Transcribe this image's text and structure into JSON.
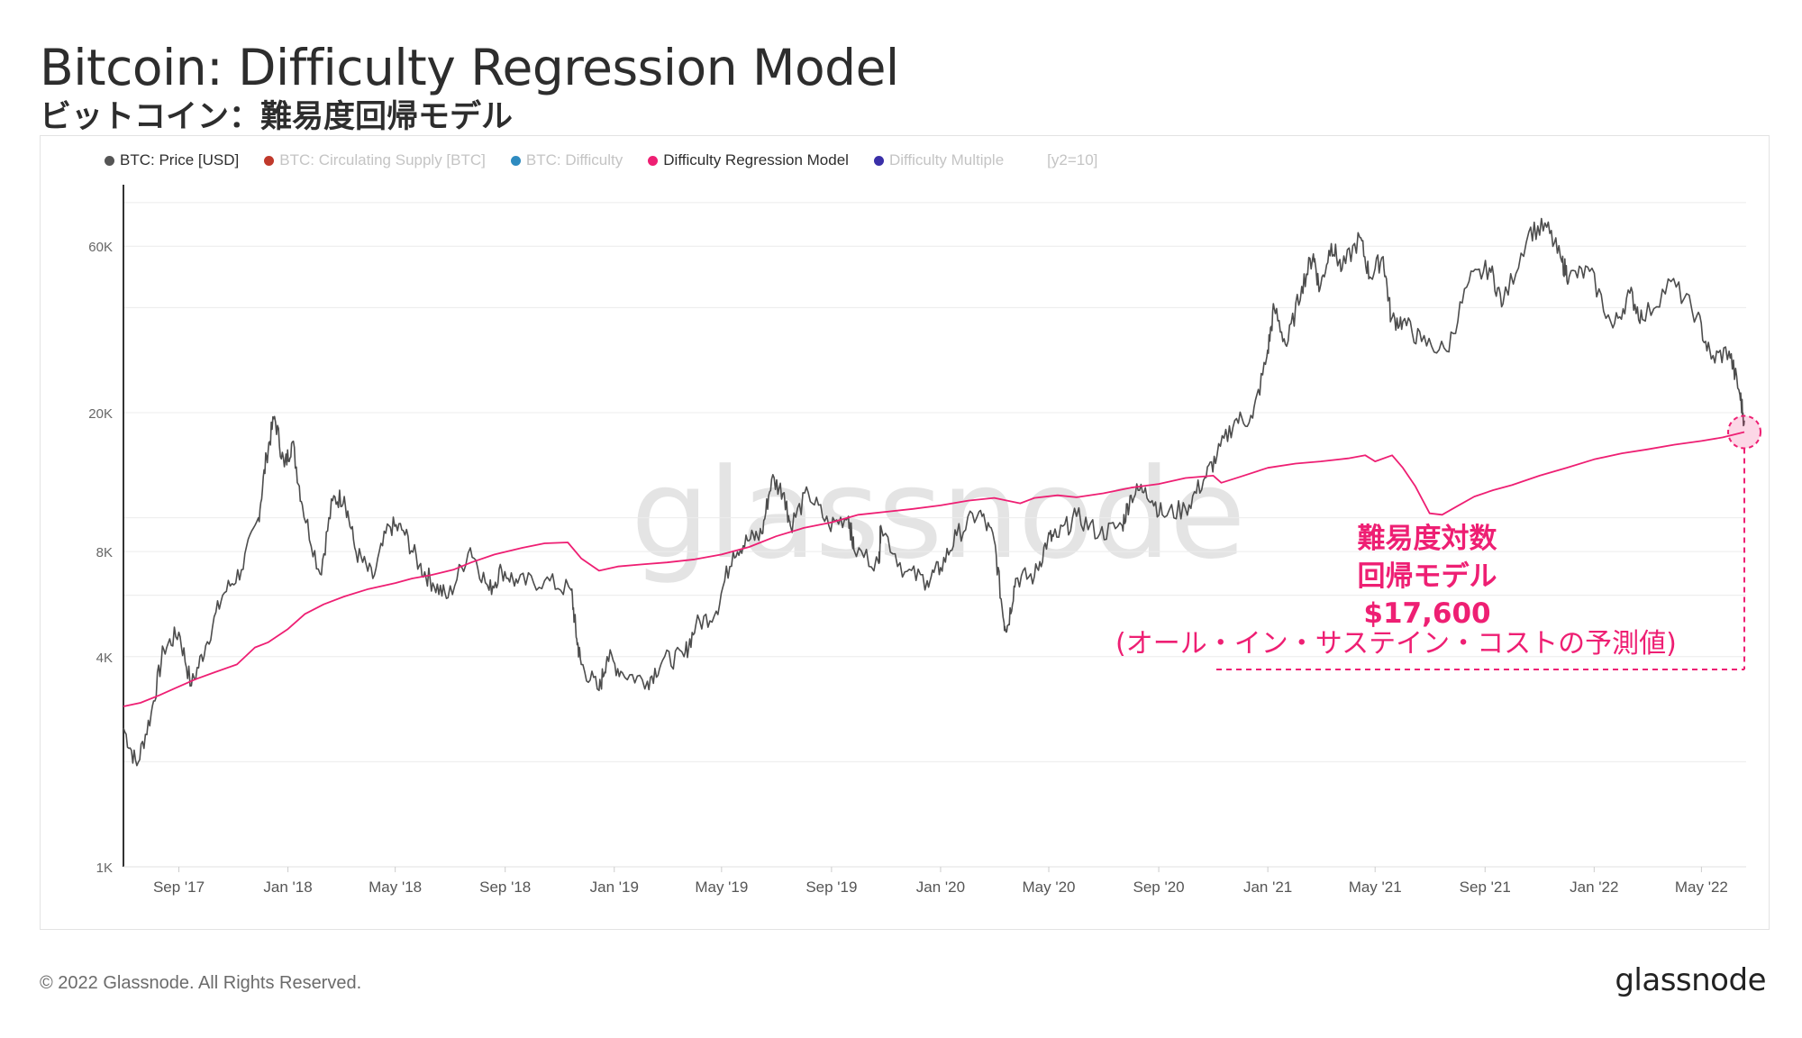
{
  "title": "Bitcoin: Difficulty Regression Model",
  "subtitle": "ビットコイン：難易度回帰モデル",
  "legend": [
    {
      "label": "BTC: Price [USD]",
      "color": "#555555",
      "active": true
    },
    {
      "label": "BTC: Circulating Supply [BTC]",
      "color": "#c0392b",
      "active": false
    },
    {
      "label": "BTC: Difficulty",
      "color": "#2e8bc0",
      "active": false
    },
    {
      "label": "Difficulty Regression Model",
      "color": "#ee1f73",
      "active": true
    },
    {
      "label": "Difficulty Multiple",
      "color": "#3a2fa8",
      "active": false
    }
  ],
  "legend_extra": "[y2=10]",
  "watermark": "glassnode",
  "annotation": {
    "line1": "難易度対数",
    "line2": "回帰モデル",
    "value": "$17,600",
    "note": "(オール・イン・サステイン・コストの予測値)"
  },
  "footer": {
    "copyright": "© 2022 Glassnode. All Rights Reserved.",
    "logo": "glassnode"
  },
  "chart_data": {
    "type": "line",
    "y_scale": "log",
    "ylim": [
      1000,
      90000
    ],
    "y_ticks": [
      {
        "value": 1000,
        "label": "1K"
      },
      {
        "value": 4000,
        "label": "4K"
      },
      {
        "value": 8000,
        "label": "8K"
      },
      {
        "value": 20000,
        "label": "20K"
      },
      {
        "value": 60000,
        "label": "60K"
      }
    ],
    "y_gridlines": [
      2000,
      4000,
      6000,
      8000,
      10000,
      20000,
      40000,
      60000,
      80000
    ],
    "x_range": [
      "2017-07-01",
      "2022-06-20"
    ],
    "x_ticks": [
      {
        "date": "2017-09-01",
        "label": "Sep '17"
      },
      {
        "date": "2018-01-01",
        "label": "Jan '18"
      },
      {
        "date": "2018-05-01",
        "label": "May '18"
      },
      {
        "date": "2018-09-01",
        "label": "Sep '18"
      },
      {
        "date": "2019-01-01",
        "label": "Jan '19"
      },
      {
        "date": "2019-05-01",
        "label": "May '19"
      },
      {
        "date": "2019-09-01",
        "label": "Sep '19"
      },
      {
        "date": "2020-01-01",
        "label": "Jan '20"
      },
      {
        "date": "2020-05-01",
        "label": "May '20"
      },
      {
        "date": "2020-09-01",
        "label": "Sep '20"
      },
      {
        "date": "2021-01-01",
        "label": "Jan '21"
      },
      {
        "date": "2021-05-01",
        "label": "May '21"
      },
      {
        "date": "2021-09-01",
        "label": "Sep '21"
      },
      {
        "date": "2022-01-01",
        "label": "Jan '22"
      },
      {
        "date": "2022-05-01",
        "label": "May '22"
      }
    ],
    "series": [
      {
        "name": "BTC: Price [USD]",
        "color": "#4d4d4d",
        "points": [
          [
            "2017-07-01",
            2500
          ],
          [
            "2017-07-16",
            1950
          ],
          [
            "2017-08-01",
            2750
          ],
          [
            "2017-08-15",
            4200
          ],
          [
            "2017-09-01",
            4700
          ],
          [
            "2017-09-15",
            3300
          ],
          [
            "2017-10-01",
            4300
          ],
          [
            "2017-10-20",
            6000
          ],
          [
            "2017-11-10",
            7100
          ],
          [
            "2017-11-29",
            10000
          ],
          [
            "2017-12-08",
            15000
          ],
          [
            "2017-12-17",
            19500
          ],
          [
            "2017-12-28",
            14000
          ],
          [
            "2018-01-06",
            16500
          ],
          [
            "2018-01-17",
            10900
          ],
          [
            "2018-02-06",
            6900
          ],
          [
            "2018-02-20",
            11200
          ],
          [
            "2018-03-05",
            11500
          ],
          [
            "2018-03-18",
            8000
          ],
          [
            "2018-04-06",
            6700
          ],
          [
            "2018-04-24",
            9500
          ],
          [
            "2018-05-10",
            9200
          ],
          [
            "2018-05-28",
            7300
          ],
          [
            "2018-06-12",
            6500
          ],
          [
            "2018-06-29",
            5900
          ],
          [
            "2018-07-24",
            8200
          ],
          [
            "2018-08-14",
            6200
          ],
          [
            "2018-08-28",
            7100
          ],
          [
            "2018-09-15",
            6500
          ],
          [
            "2018-10-15",
            6600
          ],
          [
            "2018-11-14",
            6200
          ],
          [
            "2018-11-20",
            4500
          ],
          [
            "2018-11-25",
            3800
          ],
          [
            "2018-12-15",
            3200
          ],
          [
            "2018-12-24",
            4000
          ],
          [
            "2019-01-10",
            3600
          ],
          [
            "2019-02-07",
            3400
          ],
          [
            "2019-02-24",
            3900
          ],
          [
            "2019-03-20",
            4000
          ],
          [
            "2019-04-02",
            4900
          ],
          [
            "2019-04-25",
            5400
          ],
          [
            "2019-05-14",
            8000
          ],
          [
            "2019-05-30",
            8600
          ],
          [
            "2019-06-15",
            9000
          ],
          [
            "2019-06-26",
            12900
          ],
          [
            "2019-07-10",
            11800
          ],
          [
            "2019-07-17",
            9500
          ],
          [
            "2019-08-06",
            11800
          ],
          [
            "2019-08-29",
            9500
          ],
          [
            "2019-09-20",
            10100
          ],
          [
            "2019-09-26",
            8100
          ],
          [
            "2019-10-24",
            7400
          ],
          [
            "2019-10-26",
            9500
          ],
          [
            "2019-11-22",
            7000
          ],
          [
            "2019-12-17",
            6600
          ],
          [
            "2020-01-01",
            7200
          ],
          [
            "2020-01-19",
            8900
          ],
          [
            "2020-02-13",
            10400
          ],
          [
            "2020-03-01",
            8600
          ],
          [
            "2020-03-12",
            5000
          ],
          [
            "2020-03-16",
            4900
          ],
          [
            "2020-03-25",
            6700
          ],
          [
            "2020-04-15",
            6800
          ],
          [
            "2020-04-30",
            8700
          ],
          [
            "2020-05-10",
            8800
          ],
          [
            "2020-06-01",
            10100
          ],
          [
            "2020-06-27",
            9000
          ],
          [
            "2020-07-22",
            9500
          ],
          [
            "2020-08-01",
            11600
          ],
          [
            "2020-08-17",
            12200
          ],
          [
            "2020-09-05",
            10200
          ],
          [
            "2020-10-01",
            10600
          ],
          [
            "2020-10-21",
            12800
          ],
          [
            "2020-11-05",
            15000
          ],
          [
            "2020-11-25",
            19000
          ],
          [
            "2020-12-15",
            19300
          ],
          [
            "2020-12-31",
            29000
          ],
          [
            "2021-01-08",
            40000
          ],
          [
            "2021-01-22",
            31000
          ],
          [
            "2021-02-08",
            46000
          ],
          [
            "2021-02-21",
            57000
          ],
          [
            "2021-02-28",
            45000
          ],
          [
            "2021-03-13",
            61000
          ],
          [
            "2021-03-25",
            51500
          ],
          [
            "2021-04-14",
            63500
          ],
          [
            "2021-04-25",
            49000
          ],
          [
            "2021-05-10",
            56000
          ],
          [
            "2021-05-19",
            37000
          ],
          [
            "2021-06-01",
            36500
          ],
          [
            "2021-06-22",
            32000
          ],
          [
            "2021-07-20",
            30000
          ],
          [
            "2021-08-14",
            47500
          ],
          [
            "2021-09-06",
            52000
          ],
          [
            "2021-09-21",
            41000
          ],
          [
            "2021-10-20",
            66000
          ],
          [
            "2021-11-09",
            68000
          ],
          [
            "2021-11-26",
            54000
          ],
          [
            "2021-12-04",
            49000
          ],
          [
            "2021-12-27",
            50800
          ],
          [
            "2022-01-22",
            35000
          ],
          [
            "2022-02-10",
            44000
          ],
          [
            "2022-02-24",
            37000
          ],
          [
            "2022-03-28",
            47500
          ],
          [
            "2022-04-26",
            38000
          ],
          [
            "2022-05-12",
            28500
          ],
          [
            "2022-06-01",
            30000
          ],
          [
            "2022-06-13",
            22500
          ],
          [
            "2022-06-18",
            19000
          ]
        ]
      },
      {
        "name": "Difficulty Regression Model",
        "color": "#ee1f73",
        "points": [
          [
            "2017-07-01",
            2880
          ],
          [
            "2017-07-20",
            2950
          ],
          [
            "2017-08-10",
            3100
          ],
          [
            "2017-08-28",
            3250
          ],
          [
            "2017-09-20",
            3450
          ],
          [
            "2017-10-10",
            3600
          ],
          [
            "2017-11-05",
            3800
          ],
          [
            "2017-11-25",
            4250
          ],
          [
            "2017-12-10",
            4400
          ],
          [
            "2018-01-01",
            4800
          ],
          [
            "2018-01-20",
            5300
          ],
          [
            "2018-02-10",
            5650
          ],
          [
            "2018-03-05",
            5950
          ],
          [
            "2018-04-01",
            6250
          ],
          [
            "2018-05-01",
            6500
          ],
          [
            "2018-05-20",
            6700
          ],
          [
            "2018-06-10",
            6850
          ],
          [
            "2018-07-05",
            7100
          ],
          [
            "2018-07-25",
            7450
          ],
          [
            "2018-08-20",
            7850
          ],
          [
            "2018-09-20",
            8200
          ],
          [
            "2018-10-15",
            8450
          ],
          [
            "2018-11-10",
            8500
          ],
          [
            "2018-11-25",
            7650
          ],
          [
            "2018-12-15",
            7050
          ],
          [
            "2019-01-05",
            7250
          ],
          [
            "2019-02-01",
            7350
          ],
          [
            "2019-03-01",
            7450
          ],
          [
            "2019-04-01",
            7600
          ],
          [
            "2019-05-01",
            7850
          ],
          [
            "2019-06-01",
            8250
          ],
          [
            "2019-07-01",
            8850
          ],
          [
            "2019-08-01",
            9350
          ],
          [
            "2019-09-01",
            9700
          ],
          [
            "2019-10-01",
            10200
          ],
          [
            "2019-11-01",
            10400
          ],
          [
            "2019-12-01",
            10600
          ],
          [
            "2020-01-01",
            10850
          ],
          [
            "2020-02-01",
            11200
          ],
          [
            "2020-03-01",
            11400
          ],
          [
            "2020-03-30",
            11000
          ],
          [
            "2020-04-15",
            11400
          ],
          [
            "2020-05-11",
            11600
          ],
          [
            "2020-06-01",
            11450
          ],
          [
            "2020-07-01",
            11750
          ],
          [
            "2020-08-01",
            12200
          ],
          [
            "2020-09-01",
            12500
          ],
          [
            "2020-10-01",
            13000
          ],
          [
            "2020-11-01",
            13200
          ],
          [
            "2020-11-10",
            12600
          ],
          [
            "2020-12-01",
            13100
          ],
          [
            "2021-01-01",
            13900
          ],
          [
            "2021-02-01",
            14300
          ],
          [
            "2021-03-01",
            14500
          ],
          [
            "2021-04-01",
            14800
          ],
          [
            "2021-04-20",
            15100
          ],
          [
            "2021-05-01",
            14500
          ],
          [
            "2021-05-20",
            15100
          ],
          [
            "2021-06-01",
            13900
          ],
          [
            "2021-06-15",
            12300
          ],
          [
            "2021-07-01",
            10300
          ],
          [
            "2021-07-15",
            10200
          ],
          [
            "2021-08-01",
            10800
          ],
          [
            "2021-08-20",
            11500
          ],
          [
            "2021-09-10",
            12000
          ],
          [
            "2021-10-01",
            12400
          ],
          [
            "2021-11-01",
            13200
          ],
          [
            "2021-12-01",
            13900
          ],
          [
            "2022-01-01",
            14700
          ],
          [
            "2022-02-01",
            15300
          ],
          [
            "2022-03-01",
            15700
          ],
          [
            "2022-04-01",
            16200
          ],
          [
            "2022-05-01",
            16600
          ],
          [
            "2022-05-25",
            17000
          ],
          [
            "2022-06-18",
            17600
          ]
        ]
      }
    ],
    "highlight": {
      "date": "2022-06-18",
      "value": 17600,
      "color": "#ee1f73"
    }
  }
}
